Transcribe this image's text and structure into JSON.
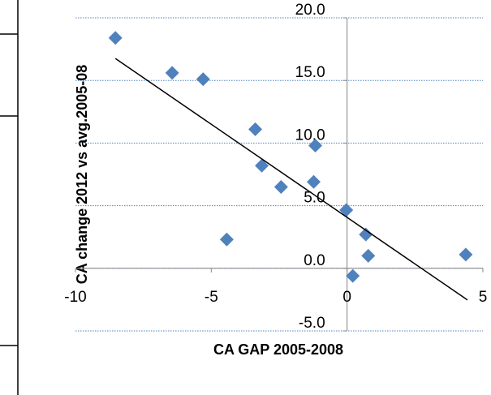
{
  "chart_data": {
    "type": "scatter",
    "x_label": "CA GAP 2005-2008",
    "y_label": "CA change 2012 vs avg.2005-08",
    "series": [
      {
        "color": "#4f81bd",
        "x": [
          -8.53,
          -6.44,
          -5.3,
          -4.43,
          -3.38,
          -3.14,
          -2.43,
          -1.23,
          -1.17,
          -0.03,
          0.21,
          0.69,
          0.78,
          4.37
        ],
        "values": [
          18.4,
          15.6,
          15.1,
          2.3,
          11.1,
          8.2,
          6.5,
          6.9,
          9.8,
          4.65,
          -0.6,
          2.7,
          1.0,
          1.1
        ]
      }
    ],
    "trendline": {
      "color": "#000000",
      "x": [
        -8.53,
        4.43
      ],
      "values": [
        16.75,
        -2.52
      ]
    },
    "xlim": [
      -10,
      5
    ],
    "xticks": [
      -10,
      -5,
      0,
      5
    ],
    "ylim": [
      -5,
      20
    ],
    "yticks": [
      {
        "value": -5,
        "label": "-5.0"
      },
      {
        "value": 0,
        "label": "0.0"
      },
      {
        "value": 5,
        "label": "5.0"
      },
      {
        "value": 10,
        "label": "10.0"
      },
      {
        "value": 15,
        "label": "15.0"
      },
      {
        "value": 20,
        "label": "20.0"
      }
    ],
    "grid": true
  }
}
